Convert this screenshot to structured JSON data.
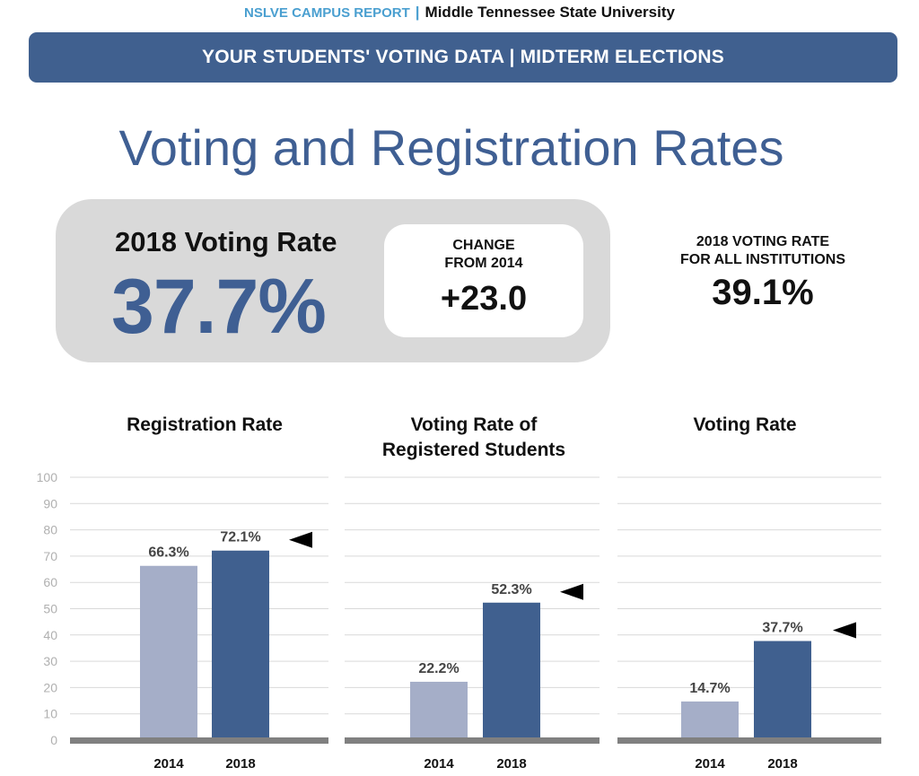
{
  "header": {
    "report_label": "NSLVE CAMPUS REPORT",
    "separator": "|",
    "university": "Middle Tennessee State University"
  },
  "banner": {
    "text": "YOUR STUDENTS' VOTING DATA | MIDTERM ELECTIONS"
  },
  "page_title": "Voting and Registration Rates",
  "summary": {
    "voting_rate_label": "2018 Voting Rate",
    "voting_rate_value": "37.7%",
    "change_label_line1": "CHANGE",
    "change_label_line2": "FROM 2014",
    "change_value": "+23.0",
    "all_institutions_line1": "2018 VOTING RATE",
    "all_institutions_line2": "FOR ALL INSTITUTIONS",
    "all_institutions_value": "39.1%"
  },
  "colors": {
    "bar_2014": "#a5aec8",
    "bar_2018": "#40608f",
    "banner": "#40608f",
    "accent_text": "#3f5f93",
    "baseline": "#808080",
    "gridline": "#d9d9d9",
    "axis_tick": "#b0b0b0"
  },
  "chart_data": [
    {
      "type": "bar",
      "title_lines": [
        "Registration Rate"
      ],
      "categories": [
        "2014",
        "2018"
      ],
      "values": [
        66.3,
        72.1
      ],
      "labels": [
        "66.3%",
        "72.1%"
      ],
      "ylim": [
        0,
        100
      ],
      "yticks": [
        0,
        10,
        20,
        30,
        40,
        50,
        60,
        70,
        80,
        90,
        100
      ],
      "grid": true,
      "marker": "arrow pointing at 2018 bar"
    },
    {
      "type": "bar",
      "title_lines": [
        "Voting Rate of",
        "Registered Students"
      ],
      "categories": [
        "2014",
        "2018"
      ],
      "values": [
        22.2,
        52.3
      ],
      "labels": [
        "22.2%",
        "52.3%"
      ],
      "ylim": [
        0,
        100
      ],
      "grid": true,
      "marker": "arrow pointing at 2018 bar"
    },
    {
      "type": "bar",
      "title_lines": [
        "Voting Rate"
      ],
      "categories": [
        "2014",
        "2018"
      ],
      "values": [
        14.7,
        37.7
      ],
      "labels": [
        "14.7%",
        "37.7%"
      ],
      "ylim": [
        0,
        100
      ],
      "grid": true,
      "marker": "arrow pointing at 2018 bar"
    }
  ]
}
